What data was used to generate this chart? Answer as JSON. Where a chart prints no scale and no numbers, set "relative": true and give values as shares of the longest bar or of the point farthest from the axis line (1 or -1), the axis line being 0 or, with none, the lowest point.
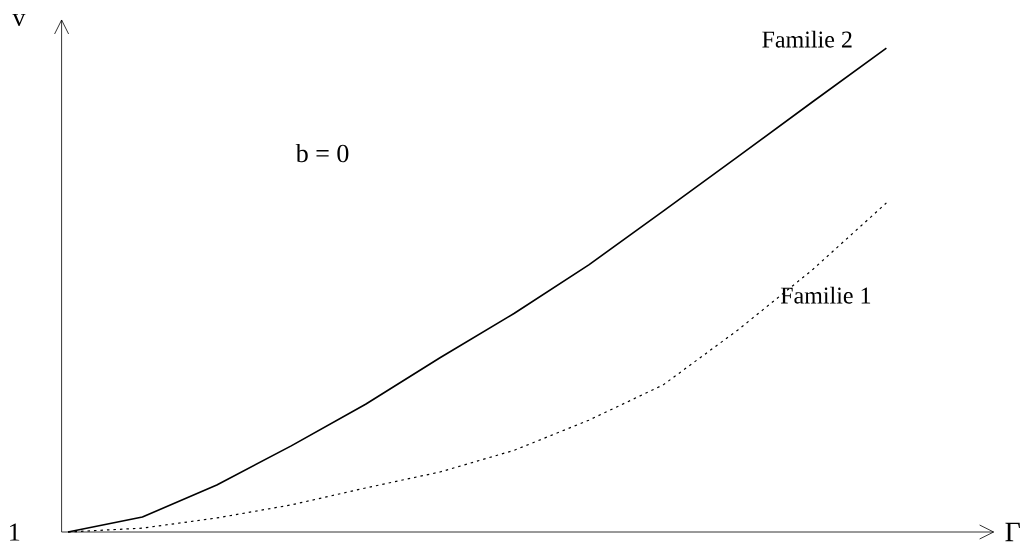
{
  "chart_data": {
    "type": "line",
    "relative": true,
    "xlabel": "Γ",
    "ylabel": "v",
    "annotations": [
      "b = 0",
      "1"
    ],
    "categories": [
      null,
      null,
      null,
      null,
      null,
      null,
      null,
      null,
      null,
      null,
      null,
      null
    ],
    "series": [
      {
        "name": "Familie 2",
        "color": "#000000",
        "line_style": "solid",
        "values": [
          0,
          0.031,
          0.097,
          0.178,
          0.264,
          0.36,
          0.452,
          0.552,
          0.663,
          0.775,
          0.888,
          1
        ]
      },
      {
        "name": "Familie 1",
        "color": "#000000",
        "line_style": "dotted",
        "values": [
          0,
          0.008,
          0.029,
          0.056,
          0.091,
          0.124,
          0.169,
          0.231,
          0.304,
          0.417,
          0.541,
          0.68
        ]
      }
    ]
  }
}
